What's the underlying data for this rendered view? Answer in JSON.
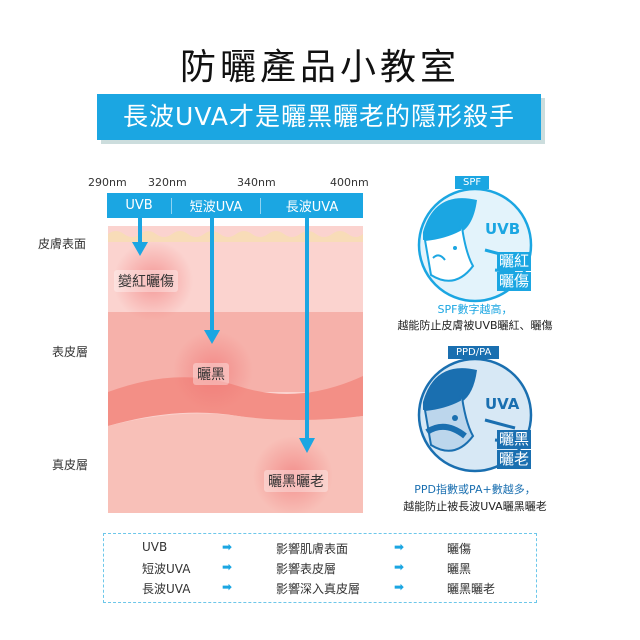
{
  "title": "防曬產品小教室",
  "banner": "長波UVA才是曬黑曬老的隱形殺手",
  "wavelengths": [
    "290nm",
    "320nm",
    "340nm",
    "400nm"
  ],
  "bands": [
    "UVB",
    "短波UVA",
    "長波UVA"
  ],
  "skin_layers": [
    "皮膚表面",
    "表皮層",
    "真皮層"
  ],
  "effects": [
    "變紅曬傷",
    "曬黑",
    "曬黑曬老"
  ],
  "spf": {
    "tag": "SPF",
    "ray": "UVB",
    "effect1": "曬紅",
    "effect2": "曬傷",
    "caption1": "SPF數字越高，",
    "caption2": "越能防止皮膚被UVB曬紅、曬傷"
  },
  "pa": {
    "tag": "PPD/PA",
    "ray": "UVA",
    "effect1": "曬黑",
    "effect2": "曬老",
    "caption1": "PPD指數或PA+數越多，",
    "caption2": "越能防止被長波UVA曬黑曬老"
  },
  "legend": [
    {
      "ray": "UVB",
      "impact": "影響肌膚表面",
      "result": "曬傷"
    },
    {
      "ray": "短波UVA",
      "impact": "影響表皮層",
      "result": "曬黑"
    },
    {
      "ray": "長波UVA",
      "impact": "影響深入真皮層",
      "result": "曬黑曬老"
    }
  ],
  "colors": {
    "accent": "#1ba6e2",
    "dark_blue": "#1a6fb0"
  }
}
